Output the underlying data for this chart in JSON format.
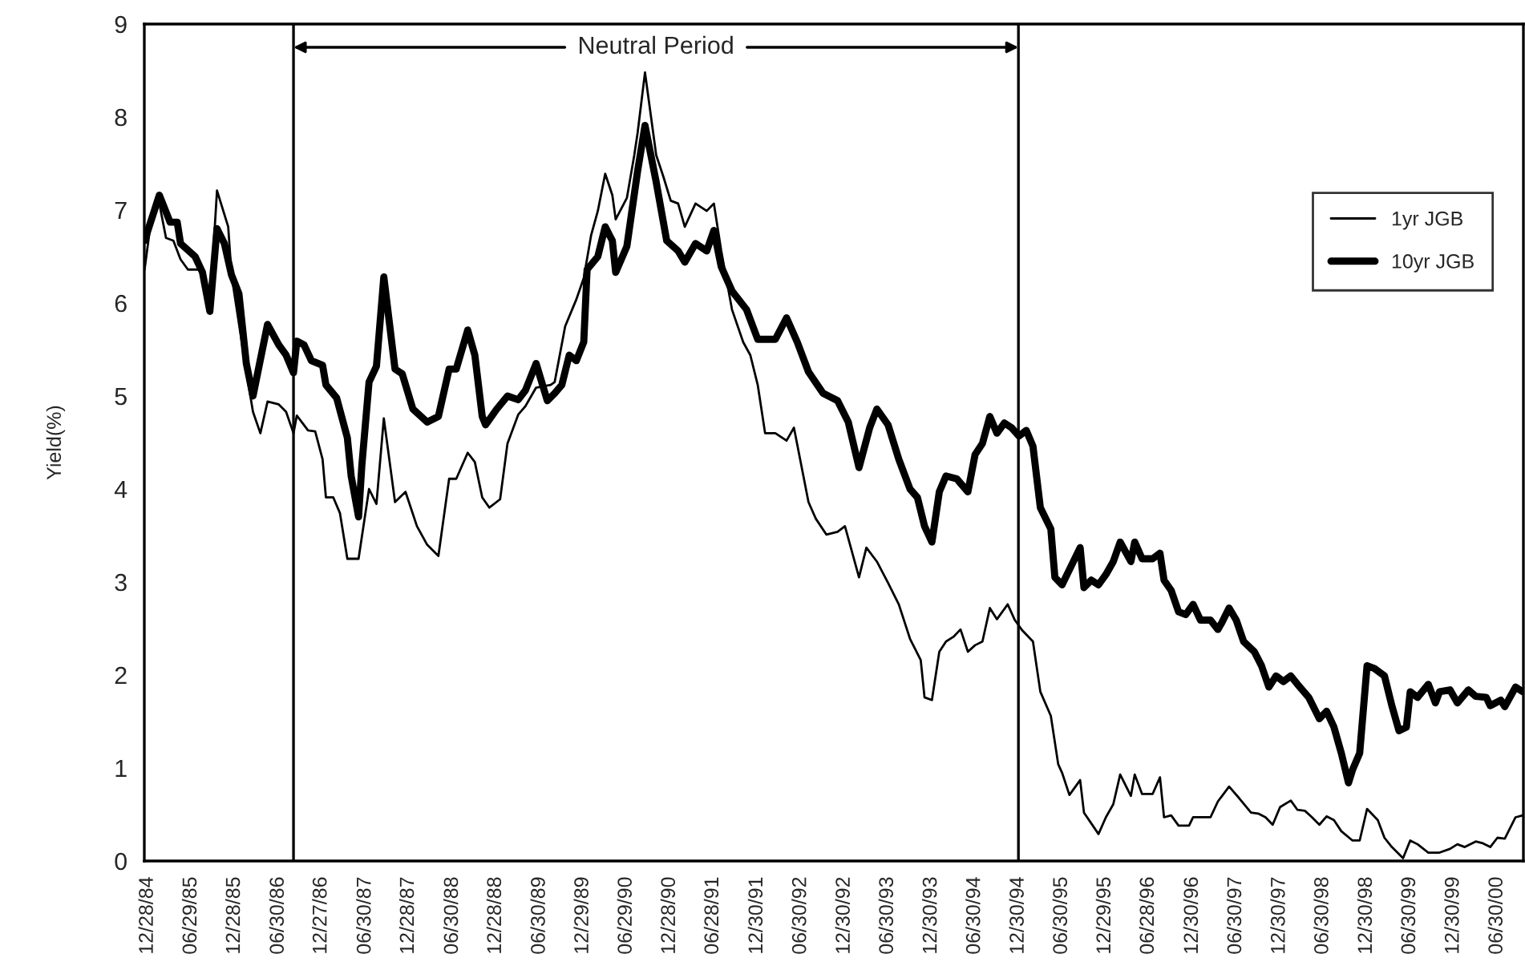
{
  "chart_data": {
    "type": "line",
    "ylabel": "Yield(%)",
    "xlim": [
      "1984-12-14",
      "2000-10-18"
    ],
    "ylim": [
      0,
      9
    ],
    "yticks": [
      0,
      1,
      2,
      3,
      4,
      5,
      6,
      7,
      8,
      9
    ],
    "xticks": [
      {
        "value": "1984-12-28",
        "label": "12/28/84"
      },
      {
        "value": "1985-06-29",
        "label": "06/29/85"
      },
      {
        "value": "1985-12-28",
        "label": "12/28/85"
      },
      {
        "value": "1986-06-30",
        "label": "06/30/86"
      },
      {
        "value": "1986-12-27",
        "label": "12/27/86"
      },
      {
        "value": "1987-06-30",
        "label": "06/30/87"
      },
      {
        "value": "1987-12-28",
        "label": "12/28/87"
      },
      {
        "value": "1988-06-30",
        "label": "06/30/88"
      },
      {
        "value": "1988-12-28",
        "label": "12/28/88"
      },
      {
        "value": "1989-06-30",
        "label": "06/30/89"
      },
      {
        "value": "1989-12-29",
        "label": "12/29/89"
      },
      {
        "value": "1990-06-29",
        "label": "06/29/90"
      },
      {
        "value": "1990-12-28",
        "label": "12/28/90"
      },
      {
        "value": "1991-06-28",
        "label": "06/28/91"
      },
      {
        "value": "1991-12-30",
        "label": "12/30/91"
      },
      {
        "value": "1992-06-30",
        "label": "06/30/92"
      },
      {
        "value": "1992-12-30",
        "label": "12/30/92"
      },
      {
        "value": "1993-06-30",
        "label": "06/30/93"
      },
      {
        "value": "1993-12-30",
        "label": "12/30/93"
      },
      {
        "value": "1994-06-30",
        "label": "06/30/94"
      },
      {
        "value": "1994-12-30",
        "label": "12/30/94"
      },
      {
        "value": "1995-06-30",
        "label": "06/30/95"
      },
      {
        "value": "1995-12-29",
        "label": "12/29/95"
      },
      {
        "value": "1996-06-28",
        "label": "06/28/96"
      },
      {
        "value": "1996-12-30",
        "label": "12/30/96"
      },
      {
        "value": "1997-06-30",
        "label": "06/30/97"
      },
      {
        "value": "1997-12-30",
        "label": "12/30/97"
      },
      {
        "value": "1998-06-30",
        "label": "06/30/98"
      },
      {
        "value": "1998-12-30",
        "label": "12/30/98"
      },
      {
        "value": "1999-06-30",
        "label": "06/30/99"
      },
      {
        "value": "1999-12-30",
        "label": "12/30/99"
      },
      {
        "value": "2000-06-30",
        "label": "06/30/00"
      }
    ],
    "series": [
      {
        "name": "1yr JGB",
        "color": "#000000",
        "x": [
          "1984-12-15",
          "1985-01-15",
          "1985-02-15",
          "1985-03-15",
          "1985-04-15",
          "1985-05-15",
          "1985-06-15",
          "1985-08-01",
          "1985-09-01",
          "1985-09-15",
          "1985-10-15",
          "1985-12-01",
          "1985-12-15",
          "1986-02-15",
          "1986-03-15",
          "1986-04-15",
          "1986-05-15",
          "1986-07-01",
          "1986-08-01",
          "1986-09-01",
          "1986-09-15",
          "1986-11-01",
          "1986-12-01",
          "1987-01-01",
          "1987-01-15",
          "1987-02-15",
          "1987-03-15",
          "1987-04-15",
          "1987-06-01",
          "1987-07-15",
          "1987-08-15",
          "1987-09-15",
          "1987-11-01",
          "1987-12-15",
          "1988-02-01",
          "1988-03-15",
          "1988-05-01",
          "1988-06-15",
          "1988-07-15",
          "1988-09-01",
          "1988-10-01",
          "1988-11-01",
          "1988-12-01",
          "1989-01-15",
          "1989-02-15",
          "1989-04-01",
          "1989-05-01",
          "1989-06-15",
          "1989-08-15",
          "1989-09-01",
          "1989-10-15",
          "1989-12-01",
          "1990-01-01",
          "1990-02-01",
          "1990-03-01",
          "1990-04-01",
          "1990-05-01",
          "1990-05-15",
          "1990-07-01",
          "1990-08-01",
          "1990-08-15",
          "1990-09-15",
          "1990-11-01",
          "1990-12-01",
          "1991-01-01",
          "1991-02-01",
          "1991-03-01",
          "1991-04-15",
          "1991-06-01",
          "1991-07-01",
          "1991-08-01",
          "1991-09-15",
          "1991-11-01",
          "1991-12-01",
          "1992-01-01",
          "1992-02-01",
          "1992-03-15",
          "1992-05-01",
          "1992-06-01",
          "1992-08-01",
          "1992-09-01",
          "1992-10-15",
          "1992-12-01",
          "1993-01-01",
          "1993-03-01",
          "1993-04-01",
          "1993-05-15",
          "1993-07-01",
          "1993-08-15",
          "1993-10-01",
          "1993-11-15",
          "1993-12-01",
          "1994-01-01",
          "1994-02-01",
          "1994-03-01",
          "1994-04-01",
          "1994-05-01",
          "1994-06-01",
          "1994-07-01",
          "1994-08-01",
          "1994-09-01",
          "1994-10-01",
          "1994-11-15",
          "1994-12-15",
          "1995-01-15",
          "1995-03-01",
          "1995-04-01",
          "1995-05-15",
          "1995-06-15",
          "1995-07-01",
          "1995-08-01",
          "1995-09-15",
          "1995-10-01",
          "1995-12-01",
          "1996-01-01",
          "1996-02-01",
          "1996-03-01",
          "1996-04-15",
          "1996-05-01",
          "1996-06-01",
          "1996-07-15",
          "1996-08-15",
          "1996-09-01",
          "1996-10-01",
          "1996-11-01",
          "1996-12-15",
          "1997-01-01",
          "1997-03-15",
          "1997-04-15",
          "1997-06-01",
          "1997-07-15",
          "1997-09-01",
          "1997-10-01",
          "1997-11-01",
          "1997-12-01",
          "1998-01-01",
          "1998-02-15",
          "1998-03-15",
          "1998-04-15",
          "1998-05-15",
          "1998-06-15",
          "1998-07-15",
          "1998-08-15",
          "1998-09-15",
          "1998-11-01",
          "1998-12-01",
          "1999-01-01",
          "1999-02-15",
          "1999-03-15",
          "1999-04-15",
          "1999-06-01",
          "1999-07-01",
          "1999-08-01",
          "1999-09-15",
          "1999-11-01",
          "1999-12-15",
          "2000-01-15",
          "2000-02-15",
          "2000-04-01",
          "2000-05-01",
          "2000-06-01",
          "2000-07-01",
          "2000-08-01",
          "2000-09-15",
          "2000-10-15"
        ],
        "values": [
          6.36,
          6.96,
          7.07,
          6.7,
          6.67,
          6.47,
          6.36,
          6.36,
          6.16,
          5.95,
          7.21,
          6.82,
          6.3,
          5.26,
          4.83,
          4.6,
          4.94,
          4.91,
          4.83,
          4.6,
          4.79,
          4.63,
          4.62,
          4.32,
          3.91,
          3.91,
          3.74,
          3.25,
          3.25,
          4.0,
          3.84,
          4.76,
          3.86,
          3.97,
          3.6,
          3.4,
          3.28,
          4.11,
          4.11,
          4.39,
          4.29,
          3.91,
          3.8,
          3.89,
          4.49,
          4.8,
          4.89,
          5.09,
          5.12,
          5.15,
          5.75,
          6.04,
          6.27,
          6.73,
          6.99,
          7.39,
          7.16,
          6.9,
          7.13,
          7.59,
          7.83,
          8.48,
          7.59,
          7.36,
          7.1,
          7.07,
          6.82,
          7.07,
          6.99,
          7.07,
          6.56,
          5.93,
          5.58,
          5.44,
          5.12,
          4.6,
          4.6,
          4.52,
          4.66,
          3.86,
          3.68,
          3.51,
          3.54,
          3.6,
          3.05,
          3.37,
          3.22,
          2.99,
          2.76,
          2.39,
          2.16,
          1.76,
          1.73,
          2.25,
          2.36,
          2.41,
          2.49,
          2.25,
          2.32,
          2.36,
          2.72,
          2.6,
          2.76,
          2.59,
          2.48,
          2.36,
          1.82,
          1.56,
          1.04,
          0.95,
          0.71,
          0.87,
          0.52,
          0.29,
          0.47,
          0.61,
          0.93,
          0.7,
          0.93,
          0.72,
          0.72,
          0.9,
          0.47,
          0.49,
          0.38,
          0.38,
          0.47,
          0.47,
          0.64,
          0.8,
          0.67,
          0.52,
          0.51,
          0.47,
          0.39,
          0.58,
          0.65,
          0.55,
          0.54,
          0.47,
          0.39,
          0.48,
          0.44,
          0.32,
          0.22,
          0.22,
          0.56,
          0.44,
          0.25,
          0.15,
          0.03,
          0.22,
          0.18,
          0.09,
          0.09,
          0.13,
          0.18,
          0.15,
          0.21,
          0.19,
          0.15,
          0.25,
          0.24,
          0.47,
          0.49
        ]
      },
      {
        "name": "10yr JGB",
        "color": "#000000",
        "x": [
          "1984-12-15",
          "1985-02-15",
          "1985-04-01",
          "1985-05-01",
          "1985-05-15",
          "1985-07-15",
          "1985-08-15",
          "1985-09-15",
          "1985-10-15",
          "1985-11-15",
          "1985-12-15",
          "1986-01-15",
          "1986-02-15",
          "1986-03-15",
          "1986-05-15",
          "1986-07-01",
          "1986-08-01",
          "1986-09-01",
          "1986-09-15",
          "1986-10-15",
          "1986-11-15",
          "1987-01-01",
          "1987-01-15",
          "1987-03-01",
          "1987-04-15",
          "1987-05-01",
          "1987-06-01",
          "1987-06-15",
          "1987-07-15",
          "1987-08-15",
          "1987-09-15",
          "1987-11-01",
          "1987-12-01",
          "1988-01-15",
          "1988-03-15",
          "1988-05-01",
          "1988-06-15",
          "1988-07-15",
          "1988-09-01",
          "1988-10-01",
          "1988-11-01",
          "1988-11-15",
          "1989-01-01",
          "1989-02-15",
          "1989-04-01",
          "1989-05-01",
          "1989-06-15",
          "1989-08-01",
          "1989-09-01",
          "1989-10-01",
          "1989-11-01",
          "1989-12-01",
          "1990-01-01",
          "1990-01-15",
          "1990-03-01",
          "1990-04-01",
          "1990-05-01",
          "1990-05-15",
          "1990-07-01",
          "1990-08-15",
          "1990-09-15",
          "1990-11-01",
          "1990-12-15",
          "1991-02-01",
          "1991-03-01",
          "1991-04-15",
          "1991-06-01",
          "1991-07-01",
          "1991-08-01",
          "1991-09-15",
          "1991-11-15",
          "1992-01-01",
          "1992-03-15",
          "1992-05-01",
          "1992-06-15",
          "1992-08-01",
          "1992-10-01",
          "1992-12-01",
          "1993-01-15",
          "1993-03-01",
          "1993-04-15",
          "1993-05-15",
          "1993-07-01",
          "1993-08-15",
          "1993-10-01",
          "1993-11-01",
          "1993-12-01",
          "1994-01-01",
          "1994-02-01",
          "1994-03-01",
          "1994-04-15",
          "1994-06-01",
          "1994-07-01",
          "1994-08-01",
          "1994-09-01",
          "1994-10-01",
          "1994-11-01",
          "1994-12-01",
          "1995-01-01",
          "1995-02-01",
          "1995-03-01",
          "1995-04-01",
          "1995-05-15",
          "1995-06-01",
          "1995-07-01",
          "1995-09-15",
          "1995-10-01",
          "1995-11-01",
          "1995-12-01",
          "1996-01-01",
          "1996-02-01",
          "1996-03-01",
          "1996-04-15",
          "1996-05-01",
          "1996-06-01",
          "1996-07-15",
          "1996-08-15",
          "1996-09-01",
          "1996-10-01",
          "1996-11-01",
          "1996-12-01",
          "1997-01-01",
          "1997-02-01",
          "1997-03-15",
          "1997-04-15",
          "1997-05-01",
          "1997-06-01",
          "1997-07-01",
          "1997-08-01",
          "1997-09-15",
          "1997-10-15",
          "1997-11-15",
          "1997-12-15",
          "1998-01-15",
          "1998-02-15",
          "1998-03-15",
          "1998-05-01",
          "1998-06-15",
          "1998-07-15",
          "1998-08-15",
          "1998-09-15",
          "1998-10-15",
          "1998-11-01",
          "1998-12-01",
          "1999-01-01",
          "1999-02-01",
          "1999-03-15",
          "1999-04-15",
          "1999-05-15",
          "1999-06-15",
          "1999-07-01",
          "1999-08-01",
          "1999-09-15",
          "1999-10-15",
          "1999-11-01",
          "1999-12-15",
          "2000-01-15",
          "2000-03-01",
          "2000-04-01",
          "2000-05-15",
          "2000-06-01",
          "2000-07-15",
          "2000-08-01",
          "2000-09-15",
          "2000-10-15"
        ],
        "values": [
          6.67,
          7.16,
          6.87,
          6.87,
          6.64,
          6.5,
          6.33,
          5.91,
          6.8,
          6.64,
          6.3,
          6.1,
          5.35,
          5.0,
          5.77,
          5.55,
          5.44,
          5.25,
          5.59,
          5.55,
          5.38,
          5.33,
          5.12,
          4.98,
          4.55,
          4.14,
          3.7,
          4.26,
          5.15,
          5.32,
          6.28,
          5.29,
          5.24,
          4.86,
          4.72,
          4.78,
          5.29,
          5.29,
          5.71,
          5.44,
          4.78,
          4.69,
          4.86,
          5.0,
          4.96,
          5.06,
          5.35,
          4.95,
          5.03,
          5.12,
          5.44,
          5.38,
          5.58,
          6.36,
          6.5,
          6.82,
          6.67,
          6.33,
          6.61,
          7.42,
          7.91,
          7.3,
          6.67,
          6.56,
          6.44,
          6.64,
          6.56,
          6.78,
          6.39,
          6.13,
          5.93,
          5.61,
          5.61,
          5.84,
          5.58,
          5.26,
          5.03,
          4.95,
          4.72,
          4.23,
          4.66,
          4.86,
          4.69,
          4.32,
          4.0,
          3.91,
          3.6,
          3.43,
          3.97,
          4.14,
          4.11,
          3.97,
          4.37,
          4.49,
          4.78,
          4.6,
          4.71,
          4.66,
          4.57,
          4.63,
          4.46,
          3.8,
          3.57,
          3.05,
          2.97,
          3.37,
          2.94,
          3.02,
          2.97,
          3.08,
          3.22,
          3.43,
          3.22,
          3.43,
          3.25,
          3.25,
          3.31,
          3.02,
          2.91,
          2.68,
          2.65,
          2.76,
          2.59,
          2.59,
          2.49,
          2.56,
          2.72,
          2.59,
          2.36,
          2.25,
          2.1,
          1.87,
          1.99,
          1.93,
          1.99,
          1.9,
          1.76,
          1.53,
          1.61,
          1.44,
          1.16,
          0.84,
          0.98,
          1.16,
          2.1,
          2.07,
          1.99,
          1.67,
          1.4,
          1.44,
          1.82,
          1.76,
          1.9,
          1.7,
          1.82,
          1.84,
          1.7,
          1.84,
          1.77,
          1.76,
          1.67,
          1.73,
          1.66,
          1.87,
          1.82
        ]
      }
    ],
    "ref_lines": [
      {
        "axis": "x",
        "value": "1986-09-01",
        "color": "#000000"
      },
      {
        "axis": "x",
        "value": "1994-12-30",
        "color": "#000000"
      }
    ],
    "annotations": [
      {
        "text": "Neutral Period",
        "x": "1986-09-01",
        "y": 8.75
      }
    ],
    "legend": "right"
  }
}
